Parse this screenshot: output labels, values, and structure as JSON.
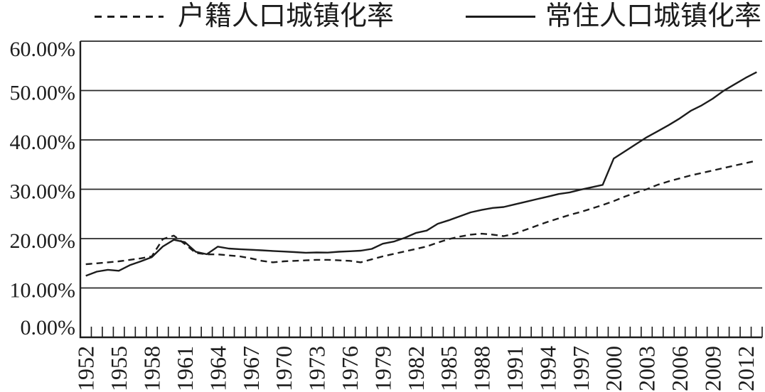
{
  "colors": {
    "ink": "#1c1c1c",
    "grid": "#2a2a2a",
    "background": "#ffffff"
  },
  "legend": {
    "position": "top"
  },
  "chart_data": {
    "type": "line",
    "title": "",
    "xlabel": "",
    "ylabel": "",
    "grid": true,
    "legend_position": "top",
    "ylim": [
      0,
      60
    ],
    "yticks": [
      {
        "value": 60,
        "label": "60.00%"
      },
      {
        "value": 50,
        "label": "50.00%"
      },
      {
        "value": 40,
        "label": "40.00%"
      },
      {
        "value": 30,
        "label": "30.00%"
      },
      {
        "value": 20,
        "label": "20.00%"
      },
      {
        "value": 10,
        "label": "10.00%"
      },
      {
        "value": 0,
        "label": "0.00%"
      }
    ],
    "xticks": [
      "1952",
      "1955",
      "1958",
      "1961",
      "1964",
      "1967",
      "1970",
      "1973",
      "1976",
      "1979",
      "1982",
      "1985",
      "1988",
      "1991",
      "1994",
      "1997",
      "2000",
      "2003",
      "2006",
      "2009",
      "2012"
    ],
    "x": [
      1952,
      1953,
      1954,
      1955,
      1956,
      1957,
      1958,
      1959,
      1960,
      1961,
      1962,
      1963,
      1964,
      1965,
      1966,
      1967,
      1968,
      1969,
      1970,
      1971,
      1972,
      1973,
      1974,
      1975,
      1976,
      1977,
      1978,
      1979,
      1980,
      1981,
      1982,
      1983,
      1984,
      1985,
      1986,
      1987,
      1988,
      1989,
      1990,
      1991,
      1992,
      1993,
      1994,
      1995,
      1996,
      1997,
      1998,
      1999,
      2000,
      2001,
      2002,
      2003,
      2004,
      2005,
      2006,
      2007,
      2008,
      2009,
      2010,
      2011,
      2012,
      2013
    ],
    "series": [
      {
        "name": "户籍人口城镇化率",
        "line_style": "dashed",
        "values": [
          14.8,
          15.0,
          15.2,
          15.4,
          15.7,
          16.0,
          16.4,
          19.9,
          20.6,
          18.9,
          17.1,
          16.8,
          16.8,
          16.6,
          16.4,
          16.0,
          15.5,
          15.2,
          15.4,
          15.5,
          15.6,
          15.7,
          15.7,
          15.6,
          15.5,
          15.2,
          15.8,
          16.4,
          16.9,
          17.4,
          17.9,
          18.4,
          19.2,
          19.9,
          20.4,
          20.8,
          21.0,
          20.8,
          20.5,
          21.0,
          21.8,
          22.6,
          23.4,
          24.1,
          24.8,
          25.4,
          26.1,
          26.8,
          27.6,
          28.5,
          29.3,
          30.0,
          30.9,
          31.6,
          32.2,
          32.8,
          33.3,
          33.8,
          34.3,
          34.8,
          35.3,
          35.8
        ]
      },
      {
        "name": "常住人口城镇化率",
        "line_style": "solid",
        "values": [
          12.46,
          13.31,
          13.69,
          13.48,
          14.62,
          15.39,
          16.25,
          18.41,
          19.75,
          19.29,
          17.33,
          16.84,
          18.37,
          17.98,
          17.86,
          17.74,
          17.62,
          17.5,
          17.38,
          17.26,
          17.13,
          17.2,
          17.16,
          17.34,
          17.44,
          17.55,
          17.92,
          18.96,
          19.39,
          20.16,
          21.13,
          21.62,
          23.01,
          23.71,
          24.52,
          25.32,
          25.81,
          26.21,
          26.41,
          26.94,
          27.46,
          27.99,
          28.51,
          29.04,
          29.37,
          29.92,
          30.4,
          30.89,
          36.22,
          37.66,
          39.09,
          40.53,
          41.76,
          42.99,
          44.34,
          45.89,
          46.99,
          48.34,
          49.95,
          51.27,
          52.57,
          53.73
        ]
      }
    ]
  }
}
